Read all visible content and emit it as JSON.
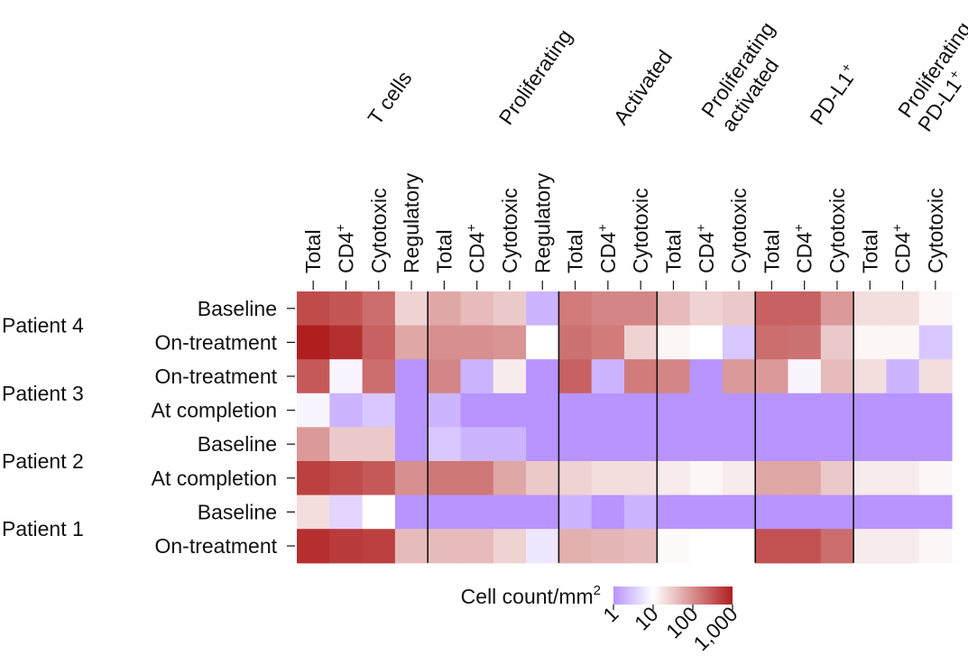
{
  "chart_data": {
    "type": "heatmap",
    "title": "",
    "value_label": "Cell count/mm",
    "value_label_sup": "2",
    "scale": "log",
    "legend": {
      "ticks": [
        {
          "value": 1,
          "label": "1"
        },
        {
          "value": 10,
          "label": "10"
        },
        {
          "value": 100,
          "label": "100"
        },
        {
          "value": 1000,
          "label": "1,000"
        }
      ]
    },
    "colors": {
      "low": "#b794ff",
      "mid": "#ffffff",
      "high": "#b01e1e"
    },
    "column_groups": [
      {
        "name": "T cells",
        "name_lines": [
          "T cells"
        ],
        "columns": [
          {
            "label": "Total",
            "sup": ""
          },
          {
            "label": "CD4",
            "sup": "+"
          },
          {
            "label": "Cytotoxic",
            "sup": ""
          },
          {
            "label": "Regulatory",
            "sup": ""
          }
        ]
      },
      {
        "name": "Proliferating",
        "name_lines": [
          "Proliferating"
        ],
        "columns": [
          {
            "label": "Total",
            "sup": ""
          },
          {
            "label": "CD4",
            "sup": "+"
          },
          {
            "label": "Cytotoxic",
            "sup": ""
          },
          {
            "label": "Regulatory",
            "sup": ""
          }
        ]
      },
      {
        "name": "Activated",
        "name_lines": [
          "Activated"
        ],
        "columns": [
          {
            "label": "Total",
            "sup": ""
          },
          {
            "label": "CD4",
            "sup": "+"
          },
          {
            "label": "Cytotoxic",
            "sup": ""
          }
        ]
      },
      {
        "name": "Proliferating activated",
        "name_lines": [
          "Proliferating",
          "activated"
        ],
        "columns": [
          {
            "label": "Total",
            "sup": ""
          },
          {
            "label": "CD4",
            "sup": "+"
          },
          {
            "label": "Cytotoxic",
            "sup": ""
          }
        ]
      },
      {
        "name": "PD-L1+",
        "name_lines": [
          "PD-L1+"
        ],
        "columns": [
          {
            "label": "Total",
            "sup": ""
          },
          {
            "label": "CD4",
            "sup": "+"
          },
          {
            "label": "Cytotoxic",
            "sup": ""
          }
        ]
      },
      {
        "name": "Proliferating PD-L1+",
        "name_lines": [
          "Proliferating",
          "PD-L1+"
        ],
        "columns": [
          {
            "label": "Total",
            "sup": ""
          },
          {
            "label": "CD4",
            "sup": "+"
          },
          {
            "label": "Cytotoxic",
            "sup": ""
          }
        ]
      }
    ],
    "patients": [
      {
        "name": "Patient 4",
        "rows": [
          "Baseline",
          "On-treatment"
        ]
      },
      {
        "name": "Patient 3",
        "rows": [
          "On-treatment",
          "At completion"
        ]
      },
      {
        "name": "Patient 2",
        "rows": [
          "Baseline",
          "At completion"
        ]
      },
      {
        "name": "Patient 1",
        "rows": [
          "Baseline",
          "On-treatment"
        ]
      }
    ],
    "values": [
      [
        400,
        320,
        200,
        25,
        60,
        40,
        30,
        2,
        150,
        120,
        120,
        40,
        25,
        30,
        250,
        250,
        80,
        20,
        20,
        12
      ],
      [
        1000,
        700,
        250,
        60,
        100,
        100,
        90,
        10,
        180,
        150,
        25,
        12,
        10,
        3,
        200,
        180,
        30,
        12,
        12,
        3
      ],
      [
        300,
        8,
        200,
        1,
        120,
        2,
        15,
        1,
        250,
        2,
        150,
        120,
        1,
        80,
        80,
        8,
        40,
        20,
        2,
        20
      ],
      [
        8,
        2,
        3,
        1,
        2,
        1,
        1,
        1,
        1,
        1,
        1,
        1,
        1,
        1,
        1,
        1,
        1,
        1,
        1,
        1
      ],
      [
        80,
        30,
        30,
        1,
        3,
        2,
        2,
        1,
        1,
        1,
        1,
        1,
        1,
        1,
        1,
        1,
        1,
        1,
        1,
        1
      ],
      [
        500,
        400,
        300,
        100,
        160,
        160,
        60,
        30,
        25,
        20,
        20,
        15,
        12,
        15,
        60,
        60,
        30,
        15,
        15,
        12
      ],
      [
        20,
        4,
        10,
        1,
        1,
        1,
        1,
        1,
        2,
        1,
        2,
        1,
        1,
        1,
        1,
        1,
        1,
        1,
        1,
        1
      ],
      [
        700,
        550,
        500,
        40,
        40,
        40,
        25,
        6,
        50,
        45,
        40,
        11,
        10,
        10,
        350,
        350,
        200,
        15,
        15,
        12
      ]
    ]
  }
}
